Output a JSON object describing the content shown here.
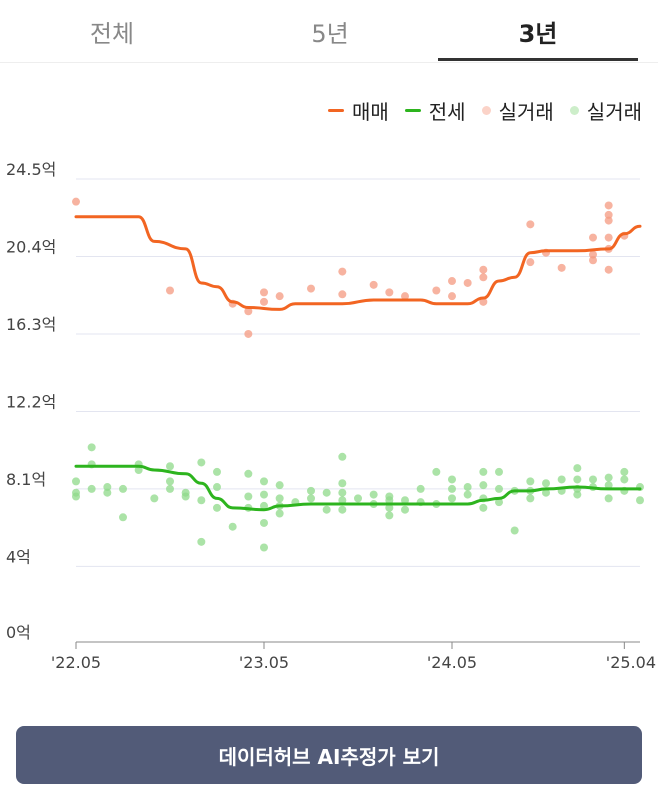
{
  "tabs": [
    {
      "label": "전체",
      "active": false
    },
    {
      "label": "5년",
      "active": false
    },
    {
      "label": "3년",
      "active": true
    }
  ],
  "legend": {
    "sale_line": "매매",
    "jeonse_line": "전세",
    "sale_dots": "실거래",
    "jeonse_dots": "실거래"
  },
  "colors": {
    "sale": "#f26522",
    "jeonse": "#2db41e",
    "sale_dot": "#f49a80",
    "jeonse_dot": "#8fd98a",
    "grid": "#e3e5f0",
    "axis": "#888888",
    "button_bg": "#525b78"
  },
  "cta": {
    "label": "데이터허브 AI추정가 보기"
  },
  "chart_data": {
    "type": "line",
    "x_ticks": [
      "'22.05",
      "'23.05",
      "'24.05",
      "'25.04"
    ],
    "x_range": [
      "2022-05",
      "2025-05"
    ],
    "y_ticks": [
      "0억",
      "4억",
      "8.1억",
      "12.2억",
      "16.3억",
      "20.4억",
      "24.5억"
    ],
    "y_tick_values": [
      0,
      4,
      8.1,
      12.2,
      16.3,
      20.4,
      24.5
    ],
    "ylim": [
      0,
      24.5
    ],
    "unit": "억",
    "series": [
      {
        "name": "매매",
        "points": [
          [
            "2022-05",
            22.5
          ],
          [
            "2022-07",
            22.5
          ],
          [
            "2022-09",
            22.5
          ],
          [
            "2022-10",
            21.2
          ],
          [
            "2022-12",
            20.8
          ],
          [
            "2023-01",
            19.0
          ],
          [
            "2023-02",
            18.8
          ],
          [
            "2023-03",
            18.0
          ],
          [
            "2023-04",
            17.7
          ],
          [
            "2023-06",
            17.6
          ],
          [
            "2023-07",
            17.9
          ],
          [
            "2023-10",
            17.9
          ],
          [
            "2023-12",
            18.1
          ],
          [
            "2024-03",
            18.1
          ],
          [
            "2024-04",
            17.9
          ],
          [
            "2024-06",
            17.9
          ],
          [
            "2024-07",
            18.2
          ],
          [
            "2024-08",
            19.1
          ],
          [
            "2024-09",
            19.3
          ],
          [
            "2024-10",
            20.6
          ],
          [
            "2024-11",
            20.7
          ],
          [
            "2025-01",
            20.7
          ],
          [
            "2025-03",
            20.8
          ],
          [
            "2025-04",
            21.6
          ],
          [
            "2025-05",
            22.0
          ]
        ]
      },
      {
        "name": "전세",
        "points": [
          [
            "2022-05",
            9.3
          ],
          [
            "2022-07",
            9.3
          ],
          [
            "2022-09",
            9.3
          ],
          [
            "2022-10",
            9.1
          ],
          [
            "2022-12",
            8.9
          ],
          [
            "2023-01",
            8.4
          ],
          [
            "2023-02",
            7.6
          ],
          [
            "2023-03",
            7.1
          ],
          [
            "2023-05",
            7.0
          ],
          [
            "2023-06",
            7.2
          ],
          [
            "2023-08",
            7.3
          ],
          [
            "2023-10",
            7.3
          ],
          [
            "2024-06",
            7.3
          ],
          [
            "2024-07",
            7.5
          ],
          [
            "2024-08",
            7.6
          ],
          [
            "2024-09",
            8.0
          ],
          [
            "2024-10",
            8.0
          ],
          [
            "2024-11",
            8.1
          ],
          [
            "2025-01",
            8.2
          ],
          [
            "2025-03",
            8.1
          ],
          [
            "2025-05",
            8.1
          ]
        ]
      }
    ],
    "scatter": [
      {
        "name": "실거래",
        "points": [
          [
            "2022-05",
            23.3
          ],
          [
            "2022-11",
            18.6
          ],
          [
            "2023-03",
            17.9
          ],
          [
            "2023-04",
            17.5
          ],
          [
            "2023-04",
            16.3
          ],
          [
            "2023-05",
            18.5
          ],
          [
            "2023-05",
            18.0
          ],
          [
            "2023-06",
            18.3
          ],
          [
            "2023-08",
            18.7
          ],
          [
            "2023-10",
            19.6
          ],
          [
            "2023-10",
            18.4
          ],
          [
            "2023-12",
            18.9
          ],
          [
            "2024-01",
            18.5
          ],
          [
            "2024-02",
            18.3
          ],
          [
            "2024-04",
            18.6
          ],
          [
            "2024-05",
            19.1
          ],
          [
            "2024-05",
            18.3
          ],
          [
            "2024-06",
            19.0
          ],
          [
            "2024-07",
            19.7
          ],
          [
            "2024-07",
            19.3
          ],
          [
            "2024-07",
            18.0
          ],
          [
            "2024-10",
            22.1
          ],
          [
            "2024-10",
            20.1
          ],
          [
            "2024-11",
            20.6
          ],
          [
            "2024-12",
            19.8
          ],
          [
            "2025-02",
            21.4
          ],
          [
            "2025-02",
            20.5
          ],
          [
            "2025-02",
            20.2
          ],
          [
            "2025-03",
            23.1
          ],
          [
            "2025-03",
            22.6
          ],
          [
            "2025-03",
            22.3
          ],
          [
            "2025-03",
            21.4
          ],
          [
            "2025-03",
            20.8
          ],
          [
            "2025-03",
            19.7
          ],
          [
            "2025-04",
            21.5
          ]
        ]
      },
      {
        "name": "실거래",
        "points": [
          [
            "2022-05",
            8.5
          ],
          [
            "2022-05",
            7.9
          ],
          [
            "2022-05",
            7.7
          ],
          [
            "2022-06",
            10.3
          ],
          [
            "2022-06",
            9.4
          ],
          [
            "2022-06",
            8.1
          ],
          [
            "2022-07",
            8.2
          ],
          [
            "2022-07",
            7.9
          ],
          [
            "2022-08",
            6.6
          ],
          [
            "2022-08",
            8.1
          ],
          [
            "2022-09",
            9.4
          ],
          [
            "2022-09",
            9.1
          ],
          [
            "2022-10",
            7.6
          ],
          [
            "2022-11",
            9.3
          ],
          [
            "2022-11",
            8.5
          ],
          [
            "2022-11",
            8.1
          ],
          [
            "2022-12",
            7.9
          ],
          [
            "2022-12",
            7.7
          ],
          [
            "2023-01",
            9.5
          ],
          [
            "2023-01",
            7.5
          ],
          [
            "2023-01",
            5.3
          ],
          [
            "2023-02",
            9.0
          ],
          [
            "2023-02",
            8.2
          ],
          [
            "2023-02",
            7.1
          ],
          [
            "2023-03",
            6.1
          ],
          [
            "2023-04",
            8.9
          ],
          [
            "2023-04",
            7.7
          ],
          [
            "2023-04",
            7.1
          ],
          [
            "2023-05",
            8.5
          ],
          [
            "2023-05",
            7.8
          ],
          [
            "2023-05",
            7.2
          ],
          [
            "2023-05",
            6.3
          ],
          [
            "2023-05",
            5.0
          ],
          [
            "2023-06",
            8.3
          ],
          [
            "2023-06",
            7.6
          ],
          [
            "2023-06",
            7.2
          ],
          [
            "2023-06",
            6.8
          ],
          [
            "2023-07",
            7.4
          ],
          [
            "2023-08",
            8.0
          ],
          [
            "2023-08",
            7.6
          ],
          [
            "2023-09",
            7.9
          ],
          [
            "2023-09",
            7.0
          ],
          [
            "2023-10",
            9.8
          ],
          [
            "2023-10",
            8.4
          ],
          [
            "2023-10",
            7.9
          ],
          [
            "2023-10",
            7.5
          ],
          [
            "2023-10",
            7.0
          ],
          [
            "2023-11",
            7.6
          ],
          [
            "2023-12",
            7.8
          ],
          [
            "2023-12",
            7.3
          ],
          [
            "2024-01",
            7.7
          ],
          [
            "2024-01",
            7.5
          ],
          [
            "2024-01",
            7.1
          ],
          [
            "2024-01",
            6.7
          ],
          [
            "2024-02",
            7.5
          ],
          [
            "2024-02",
            7.0
          ],
          [
            "2024-03",
            8.1
          ],
          [
            "2024-03",
            7.4
          ],
          [
            "2024-04",
            9.0
          ],
          [
            "2024-04",
            7.3
          ],
          [
            "2024-05",
            8.6
          ],
          [
            "2024-05",
            8.1
          ],
          [
            "2024-05",
            7.6
          ],
          [
            "2024-06",
            8.2
          ],
          [
            "2024-06",
            7.8
          ],
          [
            "2024-07",
            9.0
          ],
          [
            "2024-07",
            8.3
          ],
          [
            "2024-07",
            7.6
          ],
          [
            "2024-07",
            7.1
          ],
          [
            "2024-08",
            9.0
          ],
          [
            "2024-08",
            8.1
          ],
          [
            "2024-08",
            7.4
          ],
          [
            "2024-09",
            5.9
          ],
          [
            "2024-09",
            8.0
          ],
          [
            "2024-10",
            8.5
          ],
          [
            "2024-10",
            8.0
          ],
          [
            "2024-10",
            7.6
          ],
          [
            "2024-11",
            8.4
          ],
          [
            "2024-11",
            7.9
          ],
          [
            "2024-12",
            8.6
          ],
          [
            "2024-12",
            8.0
          ],
          [
            "2025-01",
            9.2
          ],
          [
            "2025-01",
            8.6
          ],
          [
            "2025-01",
            8.1
          ],
          [
            "2025-01",
            7.8
          ],
          [
            "2025-02",
            8.6
          ],
          [
            "2025-02",
            8.2
          ],
          [
            "2025-03",
            8.7
          ],
          [
            "2025-03",
            8.3
          ],
          [
            "2025-03",
            7.6
          ],
          [
            "2025-04",
            9.0
          ],
          [
            "2025-04",
            8.6
          ],
          [
            "2025-04",
            8.0
          ],
          [
            "2025-05",
            8.2
          ],
          [
            "2025-05",
            7.5
          ]
        ]
      }
    ],
    "grid": true,
    "legend_position": "top-right"
  }
}
